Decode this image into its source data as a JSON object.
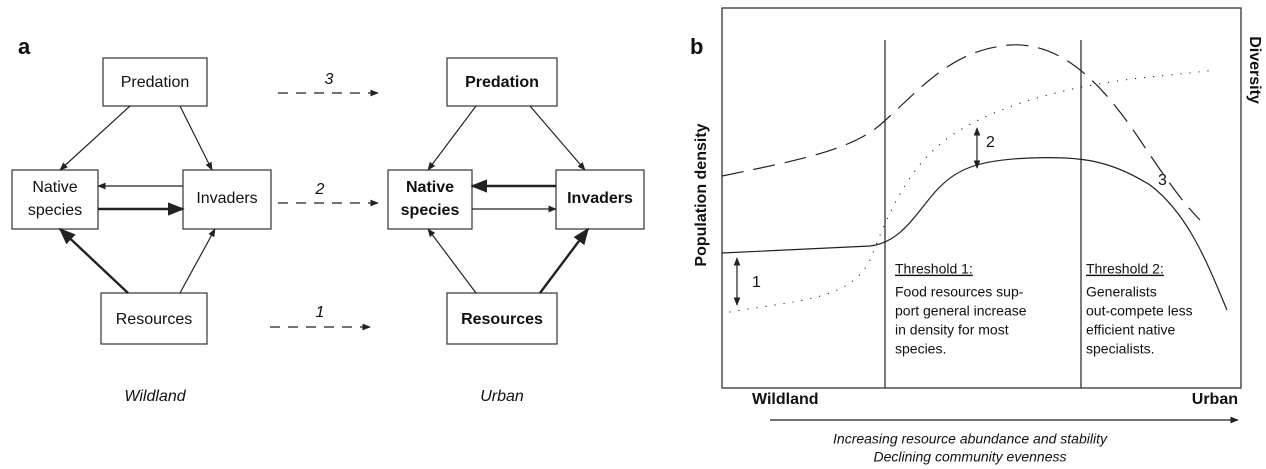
{
  "panel_a": {
    "label": "a",
    "wildland": {
      "predation": "Predation",
      "native": [
        "Native",
        "species"
      ],
      "invaders": "Invaders",
      "resources": "Resources",
      "caption": "Wildland"
    },
    "urban": {
      "predation": "Predation",
      "native": [
        "Native",
        "species"
      ],
      "invaders": "Invaders",
      "resources": "Resources",
      "caption": "Urban"
    },
    "transitions": [
      "3",
      "2",
      "1"
    ]
  },
  "panel_b": {
    "label": "b",
    "y_label": "Population density",
    "y2_label": "Diversity",
    "curve_labels": [
      "1",
      "2",
      "3"
    ],
    "threshold_1": {
      "title": "Threshold 1:",
      "lines": [
        "Food resources sup-",
        "port general increase",
        "in density for most",
        "species."
      ]
    },
    "threshold_2": {
      "title": "Threshold 2:",
      "lines": [
        "Generalists",
        "out-compete less",
        "efficient native",
        "specialists."
      ]
    },
    "x_start": "Wildland",
    "x_end": "Urban",
    "x_caption": [
      "Increasing resource abundance and stability",
      "Declining community evenness"
    ]
  }
}
